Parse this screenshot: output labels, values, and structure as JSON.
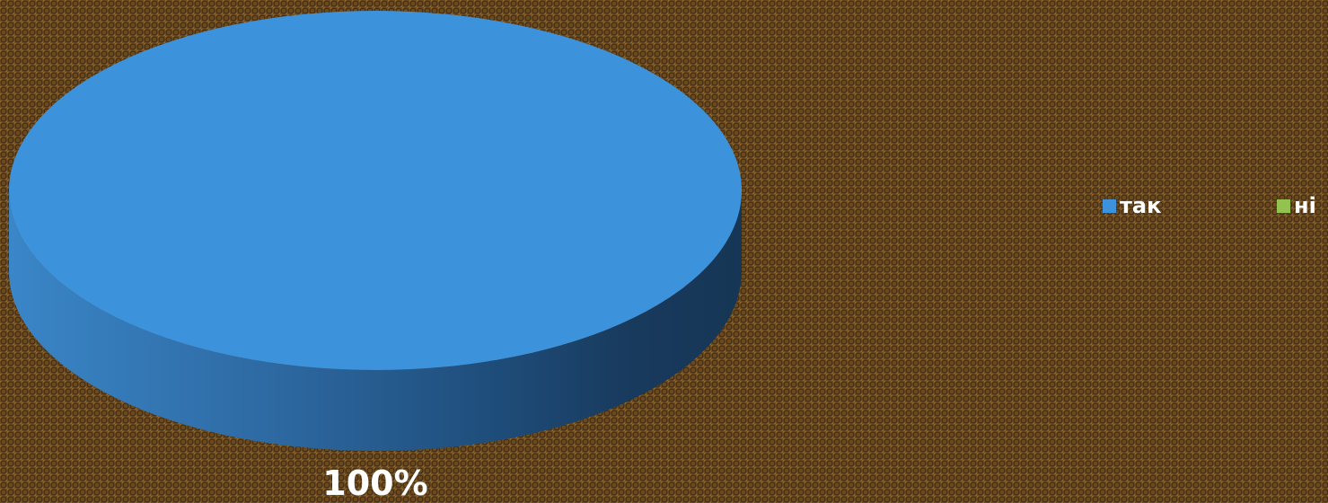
{
  "chart_data": {
    "type": "pie",
    "categories": [
      "так",
      "ні"
    ],
    "values": [
      100,
      0
    ],
    "data_labels": [
      "100%"
    ],
    "colors": [
      "#3c93db",
      "#92c351"
    ],
    "legend_position": "right",
    "style": "3d"
  }
}
